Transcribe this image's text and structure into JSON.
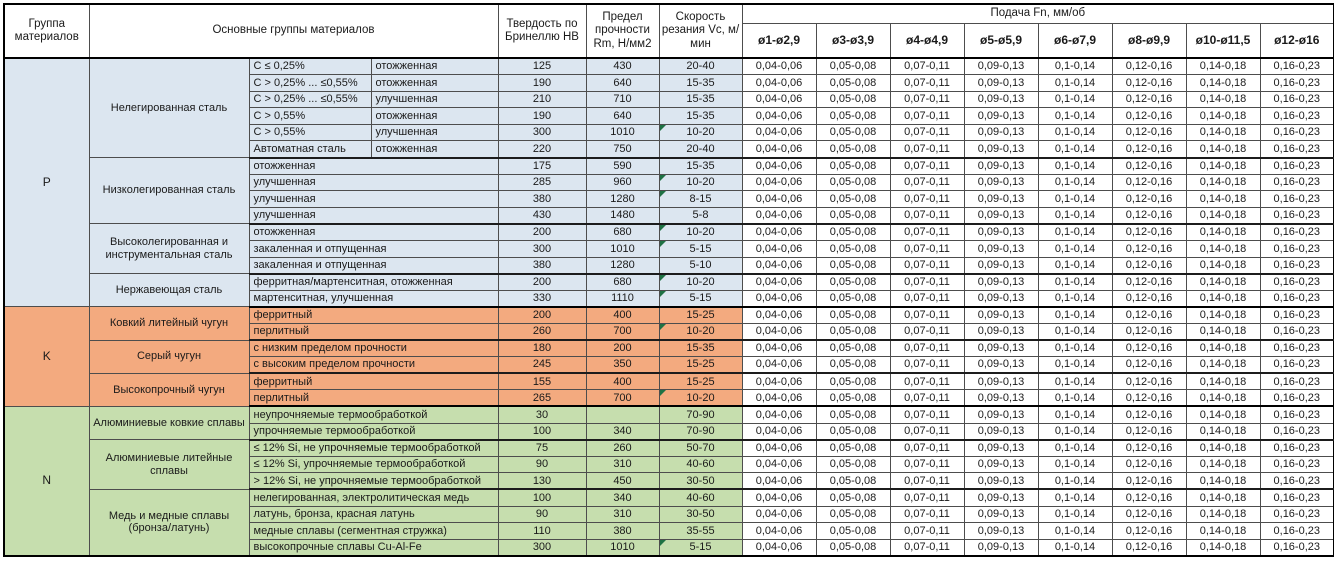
{
  "header": {
    "col_group": "Группа материалов",
    "col_main": "Основные группы материалов",
    "col_hb": "Твердость по Бринеллю HB",
    "col_rm": "Предел прочности Rm, Н/мм2",
    "col_vc": "Скорость резания Vc, м/мин",
    "feed_title": "Подача Fn, мм/об",
    "diameters": [
      "ø1-ø2,9",
      "ø3-ø3,9",
      "ø4-ø4,9",
      "ø5-ø5,9",
      "ø6-ø7,9",
      "ø8-ø9,9",
      "ø10-ø11,5",
      "ø12-ø16"
    ]
  },
  "feed_values": [
    "0,04-0,06",
    "0,05-0,08",
    "0,07-0,11",
    "0,09-0,13",
    "0,1-0,14",
    "0,12-0,16",
    "0,14-0,18",
    "0,16-0,23"
  ],
  "note_color": "#1f7244",
  "groups": [
    {
      "code": "P",
      "color": "#dce6f0",
      "subgroups": [
        {
          "name": "Нелегированная сталь",
          "rows": [
            {
              "sub1": "C ≤ 0,25%",
              "sub2": "отожженная",
              "hb": "125",
              "rm": "430",
              "vc": "20-40",
              "note": false
            },
            {
              "sub1": "C > 0,25% ... ≤0,55%",
              "sub2": "отожженная",
              "hb": "190",
              "rm": "640",
              "vc": "15-35",
              "note": false
            },
            {
              "sub1": "C > 0,25% ... ≤0,55%",
              "sub2": "улучшенная",
              "hb": "210",
              "rm": "710",
              "vc": "15-35",
              "note": false
            },
            {
              "sub1": "C > 0,55%",
              "sub2": "отожженная",
              "hb": "190",
              "rm": "640",
              "vc": "15-35",
              "note": false
            },
            {
              "sub1": "C > 0,55%",
              "sub2": "улучшенная",
              "hb": "300",
              "rm": "1010",
              "vc": "10-20",
              "note": true
            },
            {
              "sub1": "Автоматная сталь",
              "sub2": "отожженная",
              "hb": "220",
              "rm": "750",
              "vc": "20-40",
              "note": false
            }
          ]
        },
        {
          "name": "Низколегированная сталь",
          "rows": [
            {
              "desc": "отожженная",
              "hb": "175",
              "rm": "590",
              "vc": "15-35",
              "note": false
            },
            {
              "desc": "улучшенная",
              "hb": "285",
              "rm": "960",
              "vc": "10-20",
              "note": true
            },
            {
              "desc": "улучшенная",
              "hb": "380",
              "rm": "1280",
              "vc": "8-15",
              "note": true
            },
            {
              "desc": "улучшенная",
              "hb": "430",
              "rm": "1480",
              "vc": "5-8",
              "note": false
            }
          ]
        },
        {
          "name": "Высоколегированная и инструментальная сталь",
          "rows": [
            {
              "desc": "отожженная",
              "hb": "200",
              "rm": "680",
              "vc": "10-20",
              "note": true
            },
            {
              "desc": "закаленная и отпущенная",
              "hb": "300",
              "rm": "1010",
              "vc": "5-15",
              "note": true
            },
            {
              "desc": "закаленная и отпущенная",
              "hb": "380",
              "rm": "1280",
              "vc": "5-10",
              "note": false
            }
          ]
        },
        {
          "name": "Нержавеющая сталь",
          "rows": [
            {
              "desc": "ферритная/мартенситная, отожженная",
              "hb": "200",
              "rm": "680",
              "vc": "10-20",
              "note": true
            },
            {
              "desc": "мартенситная, улучшенная",
              "hb": "330",
              "rm": "1110",
              "vc": "5-15",
              "note": true
            }
          ]
        }
      ]
    },
    {
      "code": "K",
      "color": "#f3aa7f",
      "subgroups": [
        {
          "name": "Ковкий литейный чугун",
          "rows": [
            {
              "desc": "ферритный",
              "hb": "200",
              "rm": "400",
              "vc": "15-25",
              "note": false
            },
            {
              "desc": "перлитный",
              "hb": "260",
              "rm": "700",
              "vc": "10-20",
              "note": true
            }
          ]
        },
        {
          "name": "Серый чугун",
          "rows": [
            {
              "desc": "с низким пределом прочности",
              "hb": "180",
              "rm": "200",
              "vc": "15-35",
              "note": false
            },
            {
              "desc": "с высоким пределом прочности",
              "hb": "245",
              "rm": "350",
              "vc": "15-25",
              "note": false
            }
          ]
        },
        {
          "name": "Высокопрочный чугун",
          "rows": [
            {
              "desc": "ферритный",
              "hb": "155",
              "rm": "400",
              "vc": "15-25",
              "note": false
            },
            {
              "desc": "перлитный",
              "hb": "265",
              "rm": "700",
              "vc": "10-20",
              "note": true
            }
          ]
        }
      ]
    },
    {
      "code": "N",
      "color": "#c6deae",
      "subgroups": [
        {
          "name": "Алюминиевые ковкие сплавы",
          "rows": [
            {
              "desc": "неупрочняемые термообработкой",
              "hb": "30",
              "rm": "",
              "vc": "70-90",
              "note": false
            },
            {
              "desc": "упрочняемые термообработкой",
              "hb": "100",
              "rm": "340",
              "vc": "70-90",
              "note": false
            }
          ]
        },
        {
          "name": "Алюминиевые литейные сплавы",
          "rows": [
            {
              "desc": "≤ 12% Si, не упрочняемые термообработкой",
              "hb": "75",
              "rm": "260",
              "vc": "50-70",
              "note": false
            },
            {
              "desc": "≤ 12% Si, упрочняемые термообработкой",
              "hb": "90",
              "rm": "310",
              "vc": "40-60",
              "note": false
            },
            {
              "desc": "> 12% Si, не упрочняемые термообработкой",
              "hb": "130",
              "rm": "450",
              "vc": "30-50",
              "note": false
            }
          ]
        },
        {
          "name": "Медь и медные сплавы (бронза/латунь)",
          "rows": [
            {
              "desc": "нелегированная, электролитическая медь",
              "hb": "100",
              "rm": "340",
              "vc": "40-60",
              "note": false
            },
            {
              "desc": "латунь, бронза, красная латунь",
              "hb": "90",
              "rm": "310",
              "vc": "30-50",
              "note": false
            },
            {
              "desc": "медные сплавы (сегментная стружка)",
              "hb": "110",
              "rm": "380",
              "vc": "35-55",
              "note": false
            },
            {
              "desc": "высокопрочные сплавы Cu-Al-Fe",
              "hb": "300",
              "rm": "1010",
              "vc": "5-15",
              "note": true
            }
          ]
        }
      ]
    }
  ]
}
